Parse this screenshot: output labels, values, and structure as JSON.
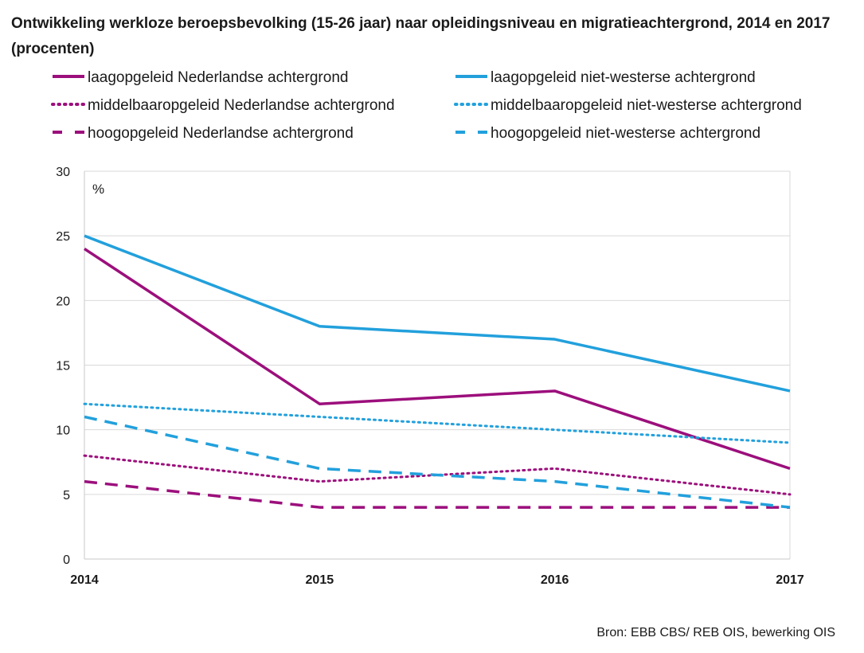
{
  "chart_data": {
    "type": "line",
    "title": "Ontwikkeling werkloze beroepsbevolking (15-26 jaar) naar opleidingsniveau en migratieachtergrond, 2014 en 2017 (procenten)",
    "xlabel": "",
    "ylabel": "%",
    "x": [
      "2014",
      "2015",
      "2016",
      "2017"
    ],
    "ylim": [
      0,
      30
    ],
    "yticks": [
      0,
      5,
      10,
      15,
      20,
      25,
      30
    ],
    "grid": true,
    "legend_position": "top",
    "series": [
      {
        "name": "laagopgeleid Nederlandse achtergrond",
        "values": [
          24,
          12,
          13,
          7
        ],
        "color": "#9c0f7c",
        "style": "solid"
      },
      {
        "name": "laagopgeleid niet-westerse achtergrond",
        "values": [
          25,
          18,
          17,
          13
        ],
        "color": "#22a0dc",
        "style": "solid"
      },
      {
        "name": "middelbaaropgeleid Nederlandse achtergrond",
        "values": [
          8,
          6,
          7,
          5
        ],
        "color": "#9c0f7c",
        "style": "dotted"
      },
      {
        "name": "middelbaaropgeleid niet-westerse achtergrond",
        "values": [
          12,
          11,
          10,
          9
        ],
        "color": "#22a0dc",
        "style": "dotted"
      },
      {
        "name": "hoogopgeleid Nederlandse achtergrond",
        "values": [
          6,
          4,
          4,
          4
        ],
        "color": "#9c0f7c",
        "style": "dashed"
      },
      {
        "name": "hoogopgeleid niet-westerse achtergrond",
        "values": [
          11,
          7,
          6,
          4
        ],
        "color": "#22a0dc",
        "style": "dashed"
      }
    ]
  },
  "source": "Bron: EBB CBS/ REB OIS, bewerking OIS"
}
